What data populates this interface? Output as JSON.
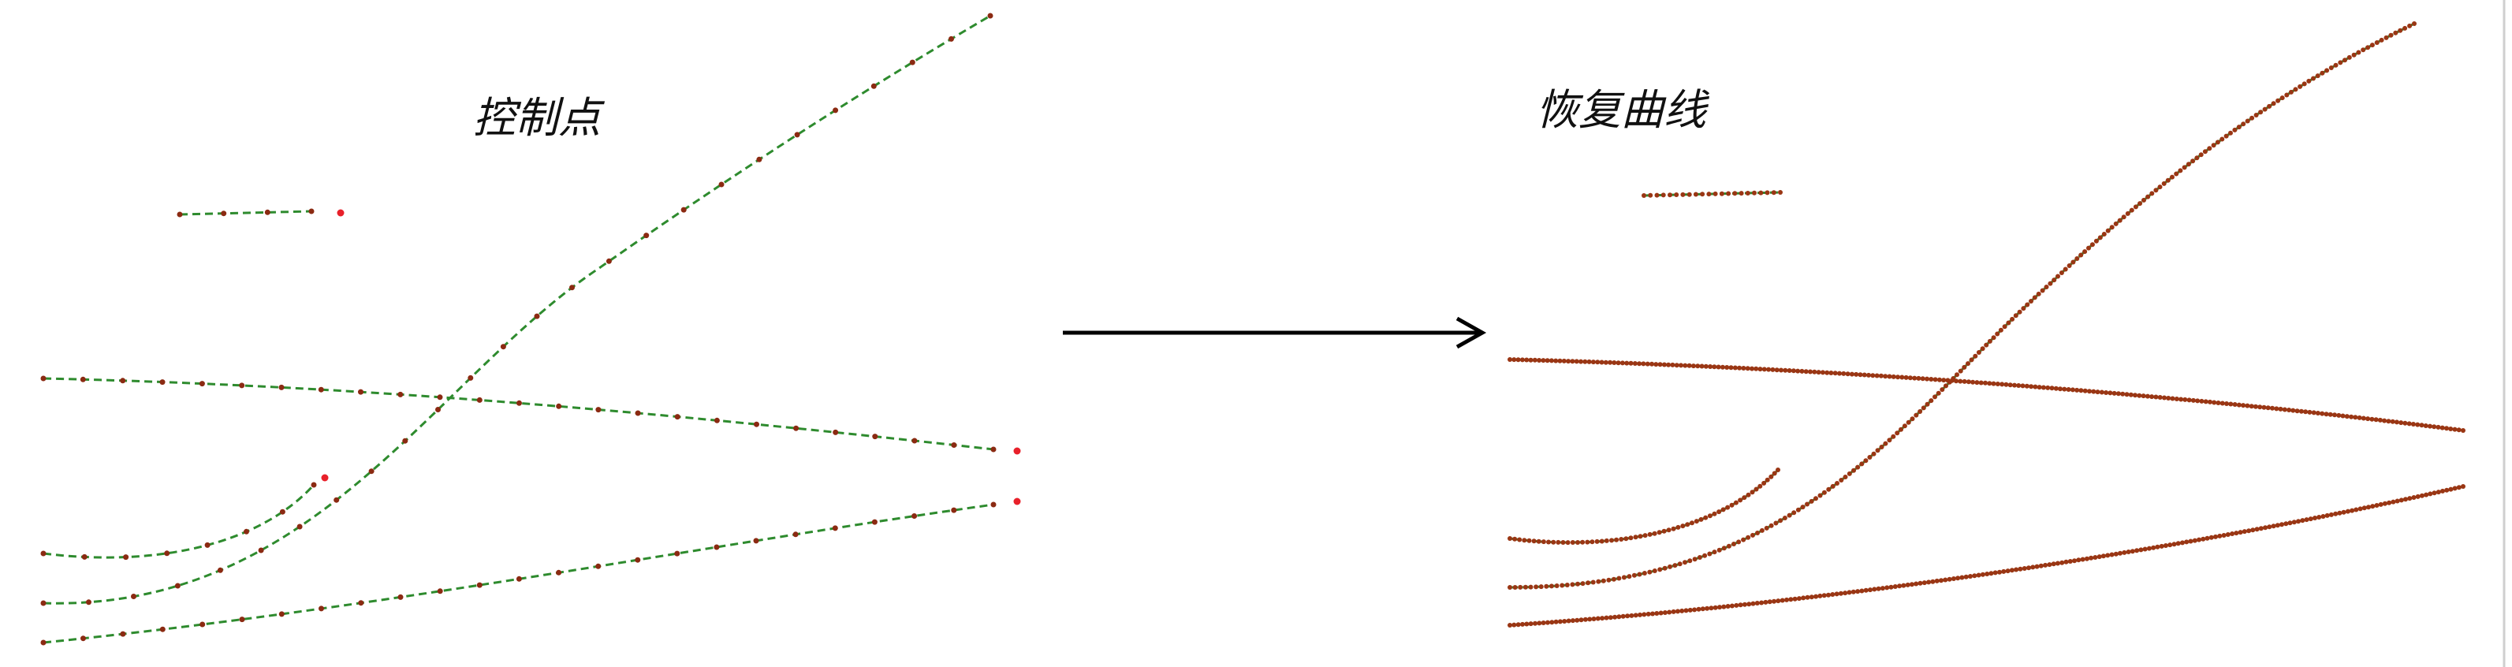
{
  "left_title": "控制点",
  "right_title": "恢复曲线",
  "icons": {
    "arrow": "arrow-right-icon"
  },
  "colors": {
    "curve": "#2e8b2e",
    "control_point": "#8b2a12",
    "outlier_point": "#e8202a",
    "recovered_point": "#9a3614",
    "arrow": "#000000"
  }
}
